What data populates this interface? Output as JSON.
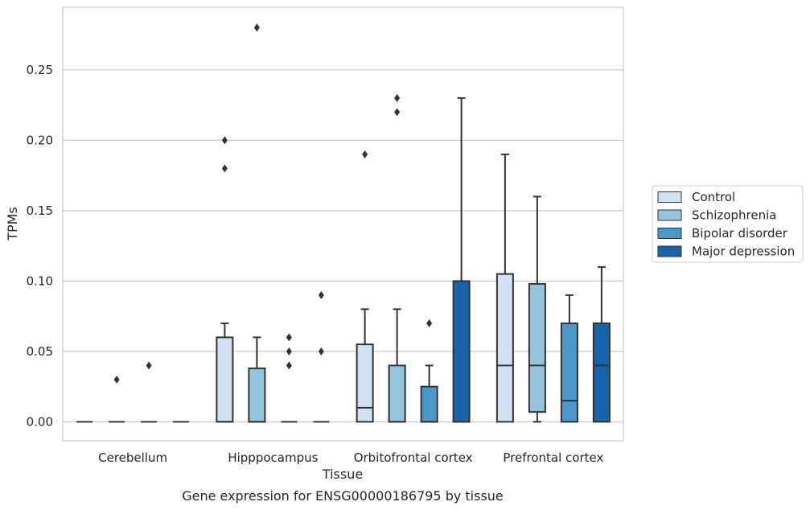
{
  "chart_data": {
    "type": "box",
    "title": "",
    "caption": "Gene expression for ENSG00000186795 by tissue",
    "xlabel": "Tissue",
    "ylabel": "TPMs",
    "ylim": [
      -0.0135,
      0.2945
    ],
    "yticks": [
      "0.00",
      "0.05",
      "0.10",
      "0.15",
      "0.20",
      "0.25"
    ],
    "ytick_values": [
      0,
      0.05,
      0.1,
      0.15,
      0.2,
      0.25
    ],
    "grid": "horizontal",
    "legend_placement": "right",
    "categories": [
      "Cerebellum",
      "Hipppocampus",
      "Orbitofrontal cortex",
      "Prefrontal cortex"
    ],
    "series": [
      {
        "name": "Control",
        "color": "#cfe1f2",
        "boxes": [
          {
            "whislo": 0,
            "q1": 0,
            "med": 0,
            "q3": 0,
            "whishi": 0,
            "fliers": []
          },
          {
            "whislo": 0,
            "q1": 0,
            "med": 0,
            "q3": 0.06,
            "whishi": 0.07,
            "fliers": [
              0.18,
              0.2
            ]
          },
          {
            "whislo": 0,
            "q1": 0,
            "med": 0.01,
            "q3": 0.055,
            "whishi": 0.08,
            "fliers": [
              0.19
            ]
          },
          {
            "whislo": 0,
            "q1": 0,
            "med": 0.04,
            "q3": 0.105,
            "whishi": 0.19,
            "fliers": []
          }
        ]
      },
      {
        "name": "Schizophrenia",
        "color": "#93c4de",
        "boxes": [
          {
            "whislo": 0,
            "q1": 0,
            "med": 0,
            "q3": 0,
            "whishi": 0,
            "fliers": [
              0.03
            ]
          },
          {
            "whislo": 0,
            "q1": 0,
            "med": 0,
            "q3": 0.038,
            "whishi": 0.06,
            "fliers": [
              0.28
            ]
          },
          {
            "whislo": 0,
            "q1": 0,
            "med": 0,
            "q3": 0.04,
            "whishi": 0.08,
            "fliers": [
              0.22,
              0.23
            ]
          },
          {
            "whislo": 0,
            "q1": 0.007,
            "med": 0.04,
            "q3": 0.098,
            "whishi": 0.16,
            "fliers": []
          }
        ]
      },
      {
        "name": "Bipolar disorder",
        "color": "#4a98c9",
        "boxes": [
          {
            "whislo": 0,
            "q1": 0,
            "med": 0,
            "q3": 0,
            "whishi": 0,
            "fliers": [
              0.04
            ]
          },
          {
            "whislo": 0,
            "q1": 0,
            "med": 0,
            "q3": 0,
            "whishi": 0,
            "fliers": [
              0.04,
              0.05,
              0.06
            ]
          },
          {
            "whislo": 0,
            "q1": 0,
            "med": 0,
            "q3": 0.025,
            "whishi": 0.04,
            "fliers": [
              0.07
            ]
          },
          {
            "whislo": 0,
            "q1": 0,
            "med": 0.015,
            "q3": 0.07,
            "whishi": 0.09,
            "fliers": []
          }
        ]
      },
      {
        "name": "Major depression",
        "color": "#1764ab",
        "boxes": [
          {
            "whislo": 0,
            "q1": 0,
            "med": 0,
            "q3": 0,
            "whishi": 0,
            "fliers": []
          },
          {
            "whislo": 0,
            "q1": 0,
            "med": 0,
            "q3": 0,
            "whishi": 0,
            "fliers": [
              0.05,
              0.09
            ]
          },
          {
            "whislo": 0,
            "q1": 0,
            "med": 0,
            "q3": 0.1,
            "whishi": 0.23,
            "fliers": []
          },
          {
            "whislo": 0,
            "q1": 0,
            "med": 0.04,
            "q3": 0.07,
            "whishi": 0.11,
            "fliers": []
          }
        ]
      }
    ]
  }
}
